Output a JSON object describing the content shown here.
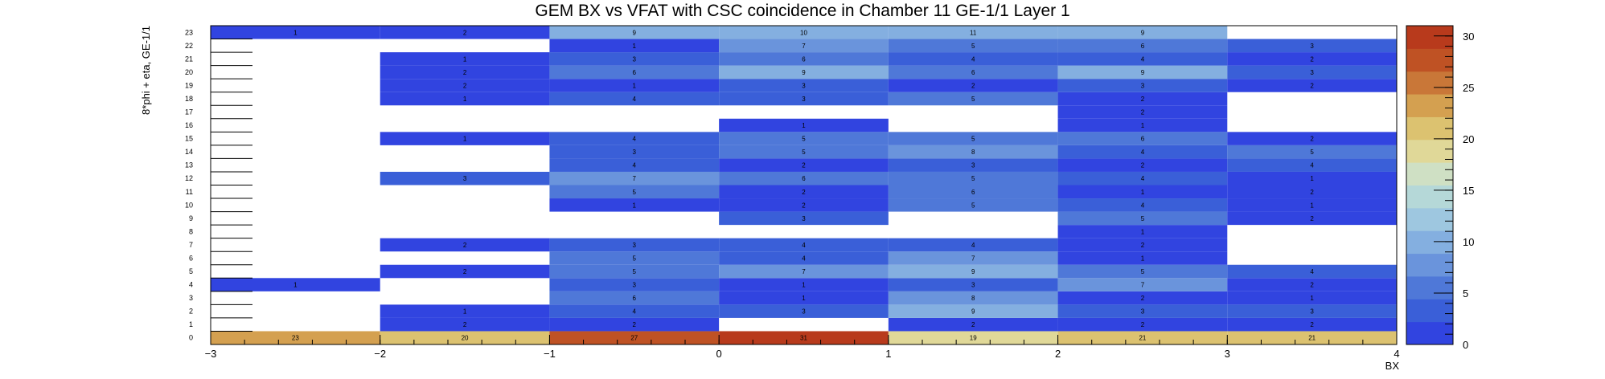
{
  "chart_data": {
    "type": "heatmap",
    "title": "GEM BX vs VFAT with CSC coincidence in Chamber 11 GE-1/1 Layer 1",
    "xlabel": "BX",
    "ylabel": "8*phi + eta, GE-1/1",
    "xlim": [
      -3,
      4
    ],
    "ylim": [
      0,
      24
    ],
    "x_ticks": [
      -3,
      -2,
      -1,
      0,
      1,
      2,
      3,
      4
    ],
    "y_ticks": [
      0,
      1,
      2,
      3,
      4,
      5,
      6,
      7,
      8,
      9,
      10,
      11,
      12,
      13,
      14,
      15,
      16,
      17,
      18,
      19,
      20,
      21,
      22,
      23
    ],
    "colorbar_range": [
      0,
      31
    ],
    "colorbar_ticks": [
      0,
      5,
      10,
      15,
      20,
      25,
      30
    ],
    "cells": [
      {
        "x": -3,
        "y": 0,
        "v": 23
      },
      {
        "x": -2,
        "y": 0,
        "v": 20
      },
      {
        "x": -1,
        "y": 0,
        "v": 27
      },
      {
        "x": 0,
        "y": 0,
        "v": 31
      },
      {
        "x": 1,
        "y": 0,
        "v": 19
      },
      {
        "x": 2,
        "y": 0,
        "v": 21
      },
      {
        "x": 3,
        "y": 0,
        "v": 21
      },
      {
        "x": -2,
        "y": 1,
        "v": 2
      },
      {
        "x": -1,
        "y": 1,
        "v": 2
      },
      {
        "x": 1,
        "y": 1,
        "v": 2
      },
      {
        "x": 2,
        "y": 1,
        "v": 2
      },
      {
        "x": 3,
        "y": 1,
        "v": 2
      },
      {
        "x": -2,
        "y": 2,
        "v": 1
      },
      {
        "x": -1,
        "y": 2,
        "v": 4
      },
      {
        "x": 0,
        "y": 2,
        "v": 3
      },
      {
        "x": 1,
        "y": 2,
        "v": 9
      },
      {
        "x": 2,
        "y": 2,
        "v": 3
      },
      {
        "x": 3,
        "y": 2,
        "v": 3
      },
      {
        "x": -1,
        "y": 3,
        "v": 6
      },
      {
        "x": 0,
        "y": 3,
        "v": 1
      },
      {
        "x": 1,
        "y": 3,
        "v": 8
      },
      {
        "x": 2,
        "y": 3,
        "v": 2
      },
      {
        "x": 3,
        "y": 3,
        "v": 1
      },
      {
        "x": -3,
        "y": 4,
        "v": 1
      },
      {
        "x": -1,
        "y": 4,
        "v": 3
      },
      {
        "x": 0,
        "y": 4,
        "v": 1
      },
      {
        "x": 1,
        "y": 4,
        "v": 3
      },
      {
        "x": 2,
        "y": 4,
        "v": 7
      },
      {
        "x": 3,
        "y": 4,
        "v": 2
      },
      {
        "x": -2,
        "y": 5,
        "v": 2
      },
      {
        "x": -1,
        "y": 5,
        "v": 5
      },
      {
        "x": 0,
        "y": 5,
        "v": 7
      },
      {
        "x": 1,
        "y": 5,
        "v": 9
      },
      {
        "x": 2,
        "y": 5,
        "v": 5
      },
      {
        "x": 3,
        "y": 5,
        "v": 4
      },
      {
        "x": -1,
        "y": 6,
        "v": 5
      },
      {
        "x": 0,
        "y": 6,
        "v": 4
      },
      {
        "x": 1,
        "y": 6,
        "v": 7
      },
      {
        "x": 2,
        "y": 6,
        "v": 1
      },
      {
        "x": -2,
        "y": 7,
        "v": 2
      },
      {
        "x": -1,
        "y": 7,
        "v": 3
      },
      {
        "x": 0,
        "y": 7,
        "v": 4
      },
      {
        "x": 1,
        "y": 7,
        "v": 4
      },
      {
        "x": 2,
        "y": 7,
        "v": 2
      },
      {
        "x": 2,
        "y": 8,
        "v": 1
      },
      {
        "x": 0,
        "y": 9,
        "v": 3
      },
      {
        "x": 2,
        "y": 9,
        "v": 5
      },
      {
        "x": 3,
        "y": 9,
        "v": 2
      },
      {
        "x": -1,
        "y": 10,
        "v": 1
      },
      {
        "x": 0,
        "y": 10,
        "v": 2
      },
      {
        "x": 1,
        "y": 10,
        "v": 5
      },
      {
        "x": 2,
        "y": 10,
        "v": 4
      },
      {
        "x": 3,
        "y": 10,
        "v": 1
      },
      {
        "x": -1,
        "y": 11,
        "v": 5
      },
      {
        "x": 0,
        "y": 11,
        "v": 2
      },
      {
        "x": 1,
        "y": 11,
        "v": 6
      },
      {
        "x": 2,
        "y": 11,
        "v": 1
      },
      {
        "x": 3,
        "y": 11,
        "v": 2
      },
      {
        "x": -2,
        "y": 12,
        "v": 3
      },
      {
        "x": -1,
        "y": 12,
        "v": 7
      },
      {
        "x": 0,
        "y": 12,
        "v": 6
      },
      {
        "x": 1,
        "y": 12,
        "v": 5
      },
      {
        "x": 2,
        "y": 12,
        "v": 4
      },
      {
        "x": 3,
        "y": 12,
        "v": 1
      },
      {
        "x": -1,
        "y": 13,
        "v": 4
      },
      {
        "x": 0,
        "y": 13,
        "v": 2
      },
      {
        "x": 1,
        "y": 13,
        "v": 3
      },
      {
        "x": 2,
        "y": 13,
        "v": 2
      },
      {
        "x": 3,
        "y": 13,
        "v": 4
      },
      {
        "x": -1,
        "y": 14,
        "v": 3
      },
      {
        "x": 0,
        "y": 14,
        "v": 5
      },
      {
        "x": 1,
        "y": 14,
        "v": 8
      },
      {
        "x": 2,
        "y": 14,
        "v": 4
      },
      {
        "x": 3,
        "y": 14,
        "v": 5
      },
      {
        "x": -2,
        "y": 15,
        "v": 1
      },
      {
        "x": -1,
        "y": 15,
        "v": 4
      },
      {
        "x": 0,
        "y": 15,
        "v": 5
      },
      {
        "x": 1,
        "y": 15,
        "v": 5
      },
      {
        "x": 2,
        "y": 15,
        "v": 6
      },
      {
        "x": 3,
        "y": 15,
        "v": 2
      },
      {
        "x": 0,
        "y": 16,
        "v": 1
      },
      {
        "x": 2,
        "y": 16,
        "v": 1
      },
      {
        "x": 2,
        "y": 17,
        "v": 2
      },
      {
        "x": -2,
        "y": 18,
        "v": 1
      },
      {
        "x": -1,
        "y": 18,
        "v": 4
      },
      {
        "x": 0,
        "y": 18,
        "v": 3
      },
      {
        "x": 1,
        "y": 18,
        "v": 5
      },
      {
        "x": 2,
        "y": 18,
        "v": 2
      },
      {
        "x": -2,
        "y": 19,
        "v": 2
      },
      {
        "x": -1,
        "y": 19,
        "v": 1
      },
      {
        "x": 0,
        "y": 19,
        "v": 3
      },
      {
        "x": 1,
        "y": 19,
        "v": 2
      },
      {
        "x": 2,
        "y": 19,
        "v": 3
      },
      {
        "x": 3,
        "y": 19,
        "v": 2
      },
      {
        "x": -2,
        "y": 20,
        "v": 2
      },
      {
        "x": -1,
        "y": 20,
        "v": 6
      },
      {
        "x": 0,
        "y": 20,
        "v": 9
      },
      {
        "x": 1,
        "y": 20,
        "v": 6
      },
      {
        "x": 2,
        "y": 20,
        "v": 9
      },
      {
        "x": 3,
        "y": 20,
        "v": 3
      },
      {
        "x": -2,
        "y": 21,
        "v": 1
      },
      {
        "x": -1,
        "y": 21,
        "v": 3
      },
      {
        "x": 0,
        "y": 21,
        "v": 6
      },
      {
        "x": 1,
        "y": 21,
        "v": 4
      },
      {
        "x": 2,
        "y": 21,
        "v": 4
      },
      {
        "x": 3,
        "y": 21,
        "v": 2
      },
      {
        "x": -1,
        "y": 22,
        "v": 1
      },
      {
        "x": 0,
        "y": 22,
        "v": 7
      },
      {
        "x": 1,
        "y": 22,
        "v": 5
      },
      {
        "x": 2,
        "y": 22,
        "v": 6
      },
      {
        "x": 3,
        "y": 22,
        "v": 3
      },
      {
        "x": -3,
        "y": 23,
        "v": 1
      },
      {
        "x": -2,
        "y": 23,
        "v": 2
      },
      {
        "x": -1,
        "y": 23,
        "v": 9
      },
      {
        "x": 0,
        "y": 23,
        "v": 10
      },
      {
        "x": 1,
        "y": 23,
        "v": 11
      },
      {
        "x": 2,
        "y": 23,
        "v": 9
      }
    ],
    "colors": {
      "low": "#3144e0",
      "palette": [
        "#3144e0",
        "#3a5fd8",
        "#4f78d8",
        "#6a94dc",
        "#84afe0",
        "#9ec7e0",
        "#b5d8d8",
        "#cfe0c4",
        "#e0d898",
        "#dcc270",
        "#d4a050",
        "#c97738",
        "#bf5224",
        "#b83a1c"
      ]
    }
  }
}
